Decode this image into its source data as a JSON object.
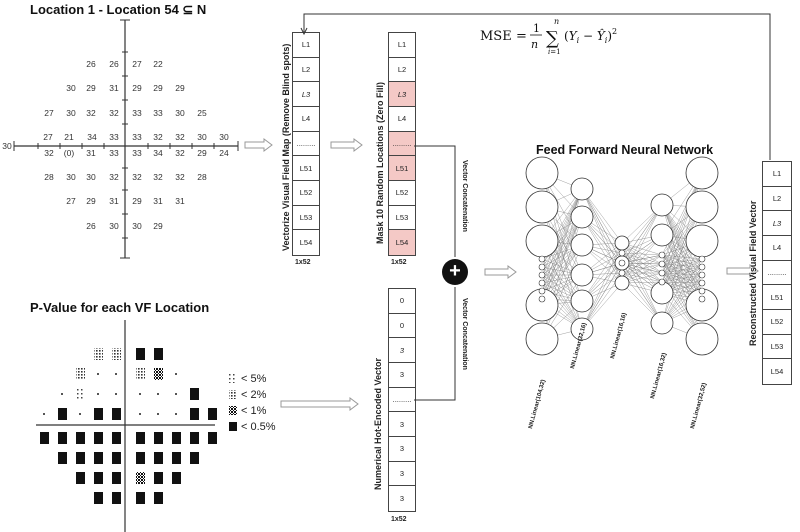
{
  "vf_title": "Location 1 - Location 54 ⊆ N",
  "vf_values": [
    {
      "t": "26",
      "x": 91,
      "y": 64
    },
    {
      "t": "26",
      "x": 114,
      "y": 64
    },
    {
      "t": "27",
      "x": 137,
      "y": 64
    },
    {
      "t": "22",
      "x": 158,
      "y": 64
    },
    {
      "t": "30",
      "x": 71,
      "y": 88
    },
    {
      "t": "29",
      "x": 91,
      "y": 88
    },
    {
      "t": "31",
      "x": 114,
      "y": 88
    },
    {
      "t": "29",
      "x": 137,
      "y": 88
    },
    {
      "t": "29",
      "x": 158,
      "y": 88
    },
    {
      "t": "29",
      "x": 180,
      "y": 88
    },
    {
      "t": "27",
      "x": 49,
      "y": 113
    },
    {
      "t": "30",
      "x": 71,
      "y": 113
    },
    {
      "t": "32",
      "x": 91,
      "y": 113
    },
    {
      "t": "32",
      "x": 114,
      "y": 113
    },
    {
      "t": "33",
      "x": 137,
      "y": 113
    },
    {
      "t": "33",
      "x": 158,
      "y": 113
    },
    {
      "t": "30",
      "x": 180,
      "y": 113
    },
    {
      "t": "25",
      "x": 202,
      "y": 113
    },
    {
      "t": "27",
      "x": 48,
      "y": 137
    },
    {
      "t": "21",
      "x": 69,
      "y": 137
    },
    {
      "t": "34",
      "x": 92,
      "y": 137
    },
    {
      "t": "33",
      "x": 114,
      "y": 137
    },
    {
      "t": "33",
      "x": 137,
      "y": 137
    },
    {
      "t": "32",
      "x": 158,
      "y": 137
    },
    {
      "t": "32",
      "x": 180,
      "y": 137
    },
    {
      "t": "30",
      "x": 202,
      "y": 137
    },
    {
      "t": "30",
      "x": 224,
      "y": 137
    },
    {
      "t": "30",
      "x": 7,
      "y": 146
    },
    {
      "t": "32",
      "x": 49,
      "y": 153
    },
    {
      "t": "(0)",
      "x": 69,
      "y": 153
    },
    {
      "t": "31",
      "x": 91,
      "y": 153
    },
    {
      "t": "33",
      "x": 114,
      "y": 153
    },
    {
      "t": "33",
      "x": 137,
      "y": 153
    },
    {
      "t": "34",
      "x": 158,
      "y": 153
    },
    {
      "t": "32",
      "x": 180,
      "y": 153
    },
    {
      "t": "29",
      "x": 202,
      "y": 153
    },
    {
      "t": "24",
      "x": 224,
      "y": 153
    },
    {
      "t": "28",
      "x": 49,
      "y": 177
    },
    {
      "t": "30",
      "x": 71,
      "y": 177
    },
    {
      "t": "30",
      "x": 91,
      "y": 177
    },
    {
      "t": "32",
      "x": 114,
      "y": 177
    },
    {
      "t": "32",
      "x": 137,
      "y": 177
    },
    {
      "t": "32",
      "x": 158,
      "y": 177
    },
    {
      "t": "32",
      "x": 180,
      "y": 177
    },
    {
      "t": "28",
      "x": 202,
      "y": 177
    },
    {
      "t": "27",
      "x": 71,
      "y": 201
    },
    {
      "t": "29",
      "x": 91,
      "y": 201
    },
    {
      "t": "31",
      "x": 114,
      "y": 201
    },
    {
      "t": "29",
      "x": 137,
      "y": 201
    },
    {
      "t": "31",
      "x": 158,
      "y": 201
    },
    {
      "t": "31",
      "x": 180,
      "y": 201
    },
    {
      "t": "26",
      "x": 91,
      "y": 226
    },
    {
      "t": "30",
      "x": 114,
      "y": 226
    },
    {
      "t": "30",
      "x": 137,
      "y": 226
    },
    {
      "t": "29",
      "x": 158,
      "y": 226
    }
  ],
  "pvalue_title": "P-Value for each VF Location",
  "legend": [
    {
      "sym": "dots",
      "label": "< 5%"
    },
    {
      "sym": "dense",
      "label": "< 2%"
    },
    {
      "sym": "check",
      "label": "< 1%"
    },
    {
      "sym": "solid",
      "label": "< 0.5%"
    }
  ],
  "vec1": {
    "label": "Vectorize Visual Field Map (Remove Blind spots)",
    "cells": [
      "L1",
      "L2",
      "L3",
      "L4",
      ".........",
      "L51",
      "L52",
      "L53",
      "L54"
    ],
    "dim": "1x52"
  },
  "vec2": {
    "label": "Mask 10 Random Locations (Zero Fill)",
    "cells": [
      "L1",
      "L2",
      "L3",
      "L4",
      ".........",
      "L51",
      "L52",
      "L53",
      "L54"
    ],
    "dim": "1x52"
  },
  "vec3": {
    "label": "Numerical Hot-Encoded Vector",
    "cells": [
      "0",
      "0",
      "3",
      "3",
      ".........",
      "3",
      "3",
      "3",
      "3"
    ],
    "dim": "1x52"
  },
  "concat_label_top": "Vector Concatenation",
  "concat_label_bottom": "Vector Concatenation",
  "plus": "+",
  "nn_title": "Feed Forward Neural Network",
  "layers": [
    "NN.Linear(104,32)",
    "NN.Linear(32,16)",
    "NN.Linear(16,16)",
    "NN.Linear(16,32)",
    "NN.Linear(32,52)"
  ],
  "output": {
    "label": "Reconstructed Visual Field Vector",
    "cells": [
      "L1",
      "L2",
      "L3",
      "L4",
      ".........",
      "L51",
      "L52",
      "L53",
      "L54"
    ]
  }
}
